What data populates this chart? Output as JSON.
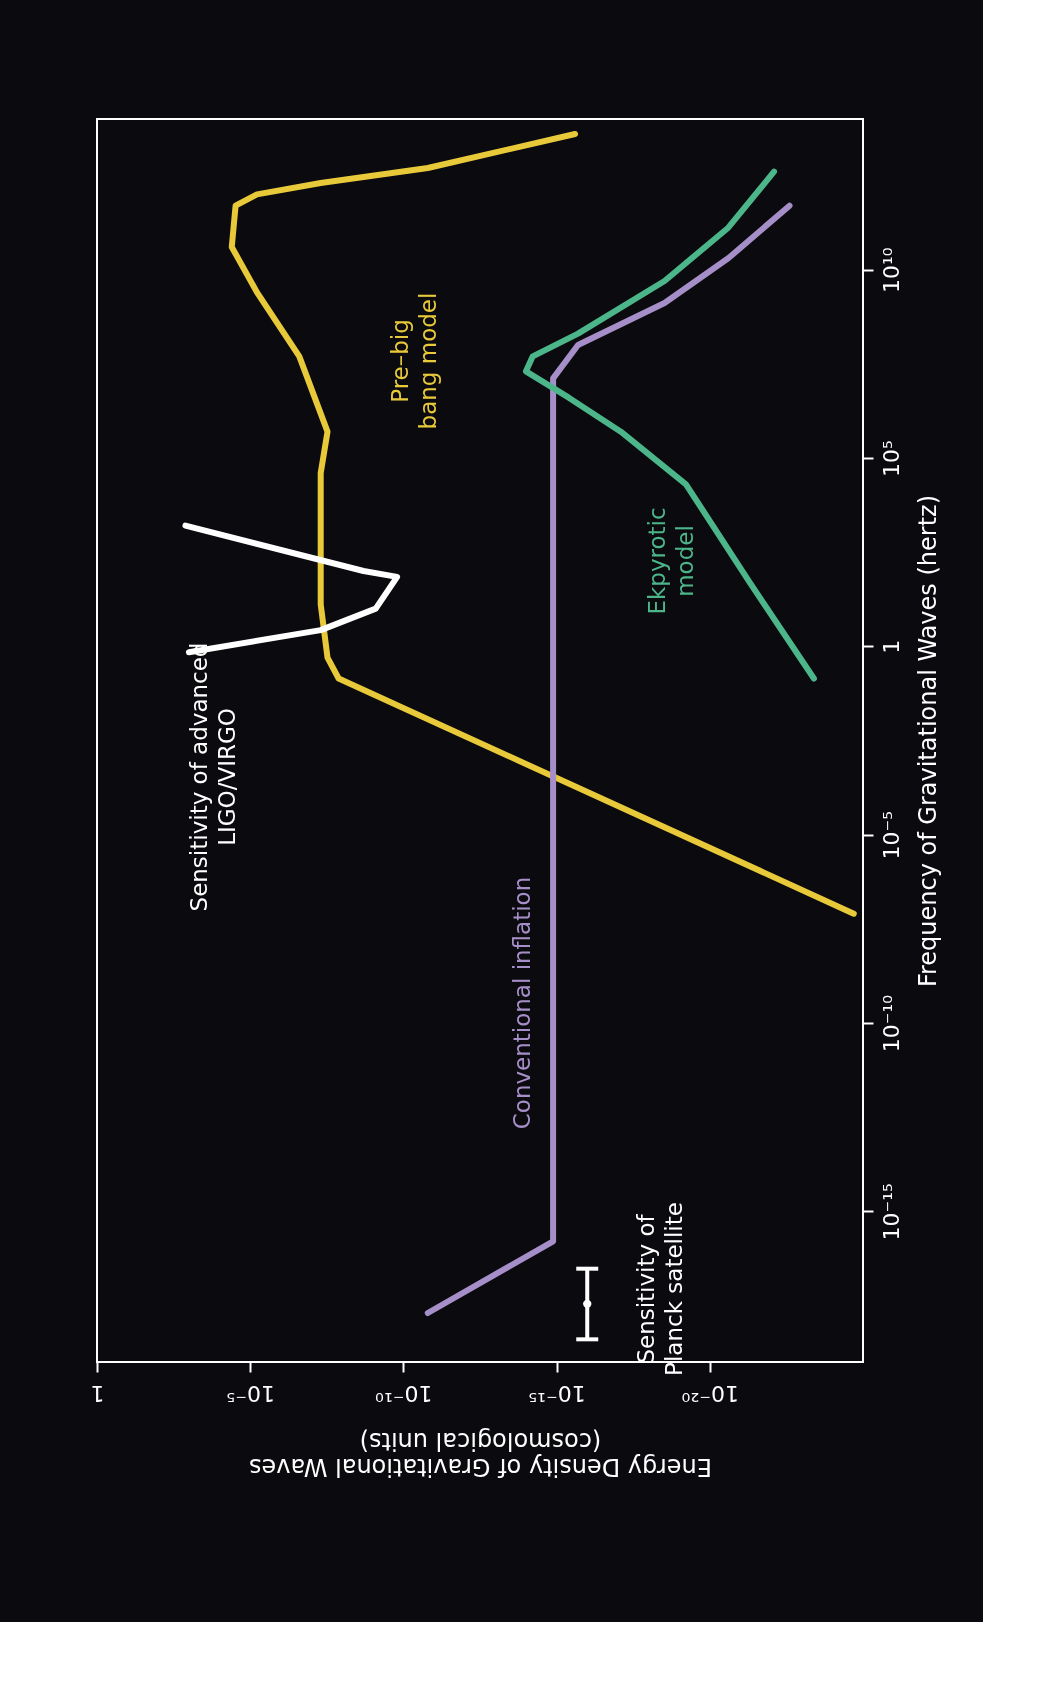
{
  "chart_data": {
    "type": "line",
    "xlabel": "Energy Density of Gravitational Waves\n(cosmological units)",
    "ylabel": "Frequency of Gravitational Waves (hertz)",
    "log": "xy",
    "line_style": "solid",
    "xlim": [
      1,
      1e-25
    ],
    "ylim": [
      1e-19,
      100000000000000.0
    ],
    "xticks": [
      1,
      {
        "value": 1e-05,
        "label": "10⁻⁵"
      },
      {
        "value": 1e-10,
        "label": "10⁻¹⁰"
      },
      {
        "value": 1e-15,
        "label": "10⁻¹⁵"
      },
      {
        "value": 1e-20,
        "label": "10⁻²⁰"
      }
    ],
    "yticks": [
      {
        "value": 1e-15,
        "label": "10⁻¹⁵"
      },
      {
        "value": 1e-10,
        "label": "10⁻¹⁰"
      },
      {
        "value": 1e-05,
        "label": "10⁻⁵"
      },
      1,
      {
        "value": 100000.0,
        "label": "10⁵"
      },
      {
        "value": 10000000000.0,
        "label": "10¹⁰"
      }
    ],
    "series": [
      {
        "color": "#e8c93a",
        "x": [
          2e-25,
          1.3e-08,
          3e-08,
          5e-08,
          5e-08,
          5e-08,
          3e-08,
          2.5e-07,
          6e-06,
          4e-05,
          3e-05,
          6e-06,
          5e-08,
          1.6e-11,
          2.5e-16
        ],
        "values": [
          8e-08,
          0.14,
          0.5,
          13,
          800,
          40000.0,
          500000.0,
          50000000.0,
          2500000000.0,
          40000000000.0,
          500000000000.0,
          1000000000000.0,
          2000000000000.0,
          5000000000000.0,
          40000000000000.0
        ]
      },
      {
        "color": "#a68fc8",
        "x": [
          1.6e-11,
          1.3e-15,
          1.3e-15,
          2e-16,
          3e-19,
          2.5e-21,
          2.5e-23
        ],
        "values": [
          2e-18,
          1.6e-16,
          13000000.0,
          100000000.0,
          1300000000.0,
          20000000000.0,
          500000000000.0
        ]
      },
      {
        "color": "#4cb58a",
        "x": [
          4e-24,
          5e-22,
          6e-20,
          8e-18,
          4e-16,
          1e-14,
          6e-15,
          2e-16,
          3e-19,
          2.5e-21,
          8e-23
        ],
        "values": [
          0.14,
          50,
          20000.0,
          500000.0,
          4000000.0,
          20000000.0,
          50000000.0,
          200000000.0,
          5000000000.0,
          130000000000.0,
          4000000000000.0
        ]
      },
      {
        "color": "#ffffff",
        "x": [
          0.0013,
          2e-09,
          1.6e-10,
          8e-10,
          5e-08,
          0.001
        ],
        "values": [
          1600,
          100,
          70,
          10,
          2.7,
          0.7
        ]
      },
      {
        "type": "scatter",
        "color": "#ffffff",
        "marker": "circle",
        "x": [
          1e-16
        ],
        "values": [
          3.5e-18
        ],
        "errors": [
          [
            4e-19,
            3e-17
          ]
        ]
      }
    ],
    "annotations": [
      "Sensitivity of advanced\nLIGO/VIRGO",
      "Pre–big\nbang model",
      "Ekpyrotic\nmodel",
      "Conventional inflation",
      "Sensitivity of\nPlanck satellite"
    ]
  }
}
